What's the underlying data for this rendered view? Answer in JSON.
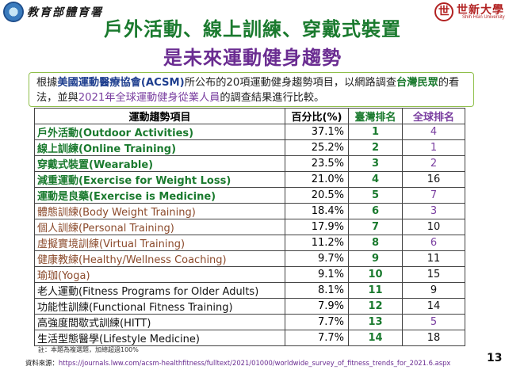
{
  "header": {
    "left_org": "教育部體育署",
    "right_logo_glyph": "世",
    "right_org": "世新大學",
    "right_org_en": "Shih Hsin University"
  },
  "title": {
    "line1": "戶外活動、線上訓練、穿戴式裝置",
    "line2": "是未來運動健身趨勢"
  },
  "description": {
    "part1": "根據",
    "org": "美國運動醫療協會(ACSM)",
    "part2": "所公布的20項運動健身趨勢項目，以網路調查",
    "tw_public": "台灣民眾",
    "part3": "的看法，並與",
    "global": "2021年全球運動健身從業人員",
    "part4": "的調查結果進行比較。"
  },
  "table": {
    "headers": [
      "運動趨勢項目",
      "百分比(%)",
      "臺灣排名",
      "全球排名"
    ],
    "rows": [
      {
        "item": "戶外活動(Outdoor Activities)",
        "pct": "37.1%",
        "tw": "1",
        "global": "4",
        "item_color": "green",
        "global_color": "purple"
      },
      {
        "item": "線上訓練(Online Training)",
        "pct": "25.2%",
        "tw": "2",
        "global": "1",
        "item_color": "green",
        "global_color": "purple"
      },
      {
        "item": "穿戴式裝置(Wearable)",
        "pct": "23.5%",
        "tw": "3",
        "global": "2",
        "item_color": "green",
        "global_color": "purple"
      },
      {
        "item": "減重運動(Exercise for Weight Loss)",
        "pct": "21.0%",
        "tw": "4",
        "global": "16",
        "item_color": "green",
        "global_color": "black"
      },
      {
        "item": "運動是良藥(Exercise is Medicine)",
        "pct": "20.5%",
        "tw": "5",
        "global": "7",
        "item_color": "green",
        "global_color": "purple"
      },
      {
        "item": "體態訓練(Body Weight Training)",
        "pct": "18.4%",
        "tw": "6",
        "global": "3",
        "item_color": "brown",
        "global_color": "purple"
      },
      {
        "item": "個人訓練(Personal Training)",
        "pct": "17.9%",
        "tw": "7",
        "global": "10",
        "item_color": "brown",
        "global_color": "black"
      },
      {
        "item": "虛擬實境訓練(Virtual Training)",
        "pct": "11.2%",
        "tw": "8",
        "global": "6",
        "item_color": "brown",
        "global_color": "purple"
      },
      {
        "item": "健康教練(Healthy/Wellness Coaching)",
        "pct": "9.7%",
        "tw": "9",
        "global": "11",
        "item_color": "brown",
        "global_color": "black"
      },
      {
        "item": "瑜珈(Yoga)",
        "pct": "9.1%",
        "tw": "10",
        "global": "15",
        "item_color": "brown",
        "global_color": "black"
      },
      {
        "item": "老人運動(Fitness Programs for Older Adults)",
        "pct": "8.1%",
        "tw": "11",
        "global": "9",
        "item_color": "black",
        "global_color": "black"
      },
      {
        "item": "功能性訓練(Functional Fitness Training)",
        "pct": "7.9%",
        "tw": "12",
        "global": "14",
        "item_color": "black",
        "global_color": "black"
      },
      {
        "item": "高強度間歇式訓練(HITT)",
        "pct": "7.7%",
        "tw": "13",
        "global": "5",
        "item_color": "black",
        "global_color": "purple"
      },
      {
        "item": "生活型態醫學(Lifestyle Medicine)",
        "pct": "7.7%",
        "tw": "14",
        "global": "18",
        "item_color": "black",
        "global_color": "black"
      }
    ]
  },
  "note": "註：本題為複選題，加總超過100%",
  "source": {
    "label": "資料來源：",
    "url": "https://journals.lww.com/acsm-healthfitness/fulltext/2021/01000/worldwide_survey_of_fitness_trends_for_2021.6.aspx"
  },
  "page_number": "13",
  "colors": {
    "title_green": "#1a7a2e",
    "title_purple": "#6a2c91",
    "item_brown": "#8b4a2b",
    "global_purple": "#7a3fa0",
    "box_border": "#8fbf4a"
  }
}
